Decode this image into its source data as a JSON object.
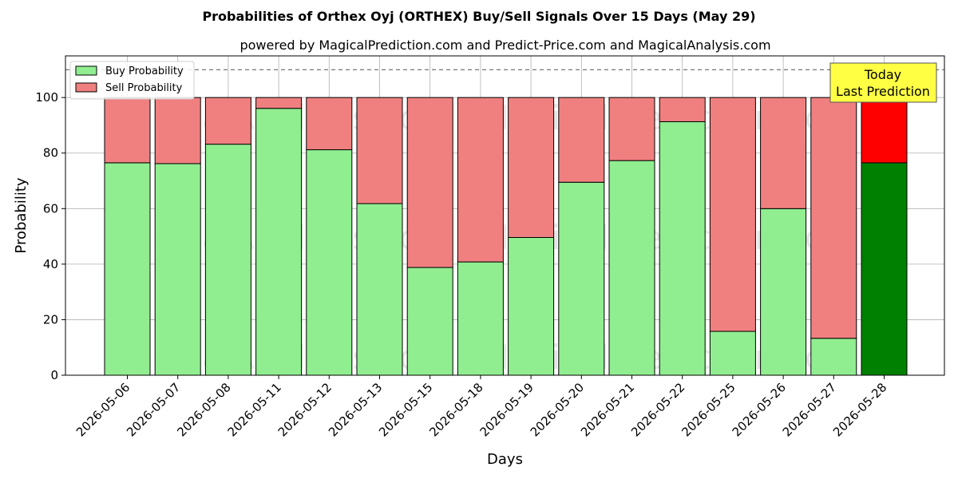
{
  "title": "Probabilities of Orthex Oyj (ORTHEX) Buy/Sell Signals Over 15 Days (May 29)",
  "subtitle": "powered by MagicalPrediction.com and Predict-Price.com and MagicalAnalysis.com",
  "watermarks": [
    "MagicalAnalysis.com",
    "MagicalPrediction.com"
  ],
  "today_box": {
    "line1": "Today",
    "line2": "Last Prediction"
  },
  "colors": {
    "buy": "#90ee90",
    "sell": "#f08080",
    "buy_today": "#008000",
    "sell_today": "#ff0000",
    "today_box": "#ffff44"
  },
  "chart_data": {
    "type": "bar",
    "stacked": true,
    "title": "Probabilities of Orthex Oyj (ORTHEX) Buy/Sell Signals Over 15 Days (May 29)",
    "xlabel": "Days",
    "ylabel": "Probability",
    "ylim": [
      0,
      115
    ],
    "yticks": [
      0,
      20,
      40,
      60,
      80,
      100
    ],
    "reference_line": 110,
    "grid": true,
    "legend_position": "top-left",
    "categories": [
      "2026-05-06",
      "2026-05-07",
      "2026-05-08",
      "2026-05-11",
      "2026-05-12",
      "2026-05-13",
      "2026-05-15",
      "2026-05-18",
      "2026-05-19",
      "2026-05-20",
      "2026-05-21",
      "2026-05-22",
      "2026-05-25",
      "2026-05-26",
      "2026-05-27",
      "2026-05-28"
    ],
    "series": [
      {
        "name": "Buy Probability",
        "values": [
          76.5,
          76.2,
          83.2,
          96.1,
          81.2,
          61.8,
          38.8,
          40.8,
          49.6,
          69.5,
          77.3,
          91.3,
          15.8,
          60.0,
          13.3,
          76.5
        ]
      },
      {
        "name": "Sell Probability",
        "values": [
          23.5,
          23.8,
          16.8,
          3.9,
          18.8,
          38.2,
          61.2,
          59.2,
          50.4,
          30.5,
          22.7,
          8.7,
          84.2,
          40.0,
          86.7,
          23.5
        ]
      }
    ]
  }
}
